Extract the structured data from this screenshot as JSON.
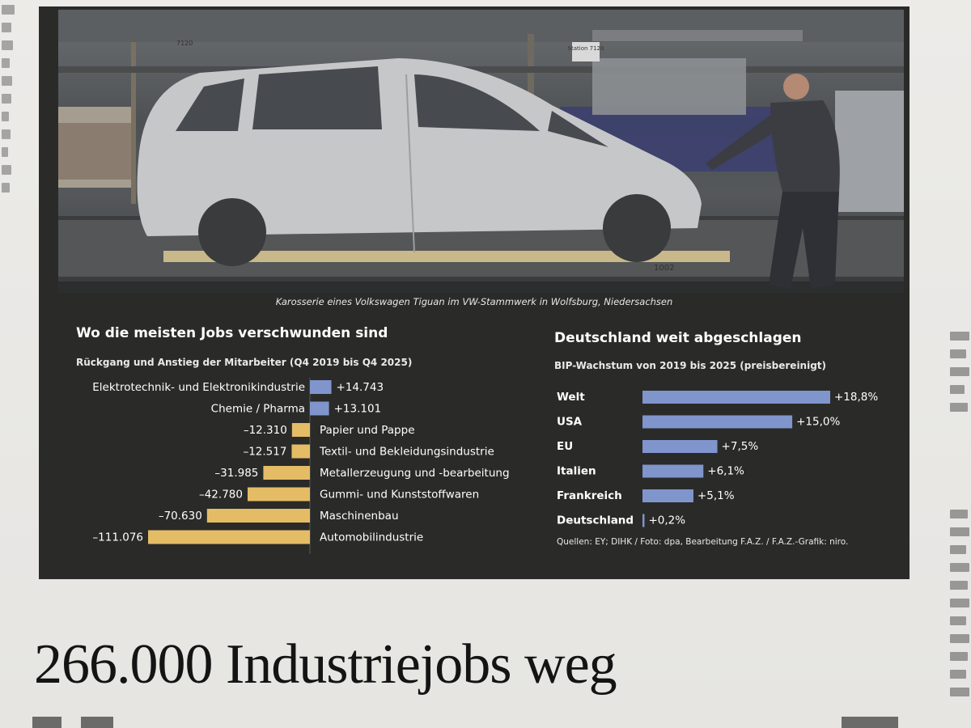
{
  "photo": {
    "caption": "Karosserie eines Volkswagen Tiguan im VW-Stammwerk in Wolfsburg, Niedersachsen",
    "sign_labels": [
      "Station 7120",
      "7120",
      "1002"
    ]
  },
  "headline": "266.000 Industriejobs weg",
  "source": "Quellen: EY; DIHK / Foto: dpa, Bearbeitung F.A.Z. / F.A.Z.-Grafik: niro.",
  "colors": {
    "positive_bar": "#7f95cc",
    "negative_bar": "#e5bc66",
    "panel": "#2a2a29",
    "text": "#ffffff"
  },
  "chart_data": [
    {
      "type": "bar",
      "orientation": "horizontal",
      "title": "Wo die meisten Jobs verschwunden sind",
      "subtitle": "Rückgang und Anstieg der Mitarbeiter (Q4 2019 bis Q4 2025)",
      "categories": [
        "Elektrotechnik- und Elektronikindustrie",
        "Chemie / Pharma",
        "Papier und Pappe",
        "Textil- und Bekleidungsindustrie",
        "Metallerzeugung und -bearbeitung",
        "Gummi- und Kunststoffwaren",
        "Maschinenbau",
        "Automobilindustrie"
      ],
      "values": [
        14743,
        13101,
        -12310,
        -12517,
        -31985,
        -42780,
        -70630,
        -111076
      ],
      "value_labels": [
        "+14.743",
        "+13.101",
        "–12.310",
        "–12.517",
        "–31.985",
        "–42.780",
        "–70.630",
        "–111.076"
      ]
    },
    {
      "type": "bar",
      "orientation": "horizontal",
      "title": "Deutschland weit abgeschlagen",
      "subtitle": "BIP-Wachstum von 2019 bis 2025 (preisbereinigt)",
      "categories": [
        "Welt",
        "USA",
        "EU",
        "Italien",
        "Frankreich",
        "Deutschland"
      ],
      "values": [
        18.8,
        15.0,
        7.5,
        6.1,
        5.1,
        0.2
      ],
      "value_labels": [
        "+18,8%",
        "+15,0%",
        "+7,5%",
        "+6,1%",
        "+5,1%",
        "+0,2%"
      ]
    }
  ]
}
